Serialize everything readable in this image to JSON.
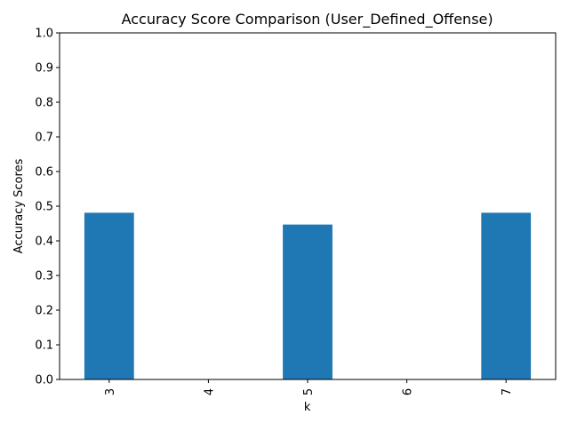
{
  "chart_data": {
    "type": "bar",
    "title": "Accuracy Score Comparison (User_Defined_Offense)",
    "xlabel": "k",
    "ylabel": "Accuracy Scores",
    "categories": [
      "3",
      "4",
      "5",
      "6",
      "7"
    ],
    "values": [
      0.481,
      0,
      0.447,
      0,
      0.481
    ],
    "ylim": [
      0,
      1.0
    ],
    "yticks": [
      "0.0",
      "0.1",
      "0.2",
      "0.3",
      "0.4",
      "0.5",
      "0.6",
      "0.7",
      "0.8",
      "0.9",
      "1.0"
    ],
    "grid": false,
    "legend": "none",
    "bar_color": "#1f77b4"
  }
}
